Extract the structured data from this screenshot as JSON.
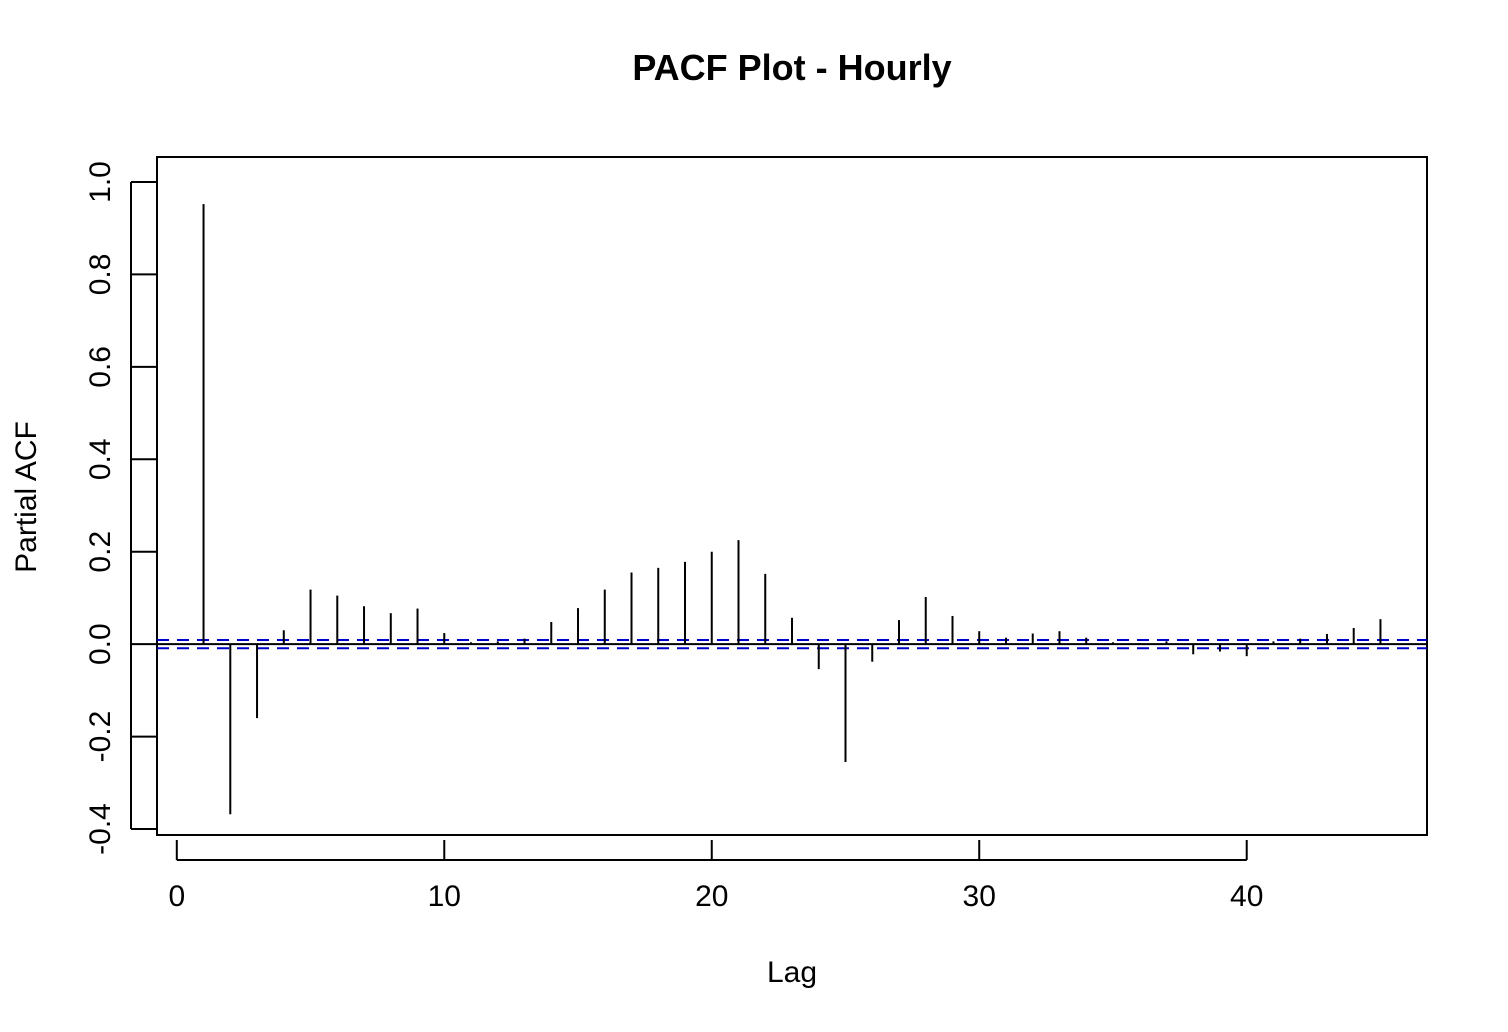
{
  "chart_data": {
    "type": "bar",
    "title": "PACF Plot - Hourly",
    "xlabel": "Lag",
    "ylabel": "Partial ACF",
    "xlim": [
      -0.74,
      46.74
    ],
    "ylim": [
      -0.4,
      1.0
    ],
    "x_ticks": [
      0,
      10,
      20,
      30,
      40
    ],
    "x_tick_labels": [
      "0",
      "10",
      "20",
      "30",
      "40"
    ],
    "y_ticks": [
      -0.4,
      -0.2,
      0.0,
      0.2,
      0.4,
      0.6,
      0.8,
      1.0
    ],
    "y_tick_labels": [
      "-0.4",
      "-0.2",
      "0.0",
      "0.2",
      "0.4",
      "0.6",
      "0.8",
      "1.0"
    ],
    "grid": false,
    "legend": "none",
    "confidence_bound": 0.009,
    "series": [
      {
        "x": [
          1,
          2,
          3,
          4,
          5,
          6,
          7,
          8,
          9,
          10,
          11,
          12,
          13,
          14,
          15,
          16,
          17,
          18,
          19,
          20,
          21,
          22,
          23,
          24,
          25,
          26,
          27,
          28,
          29,
          30,
          31,
          32,
          33,
          34,
          35,
          36,
          37,
          38,
          39,
          40,
          41,
          42,
          43,
          44,
          45
        ],
        "values": [
          0.952,
          -0.368,
          -0.16,
          0.03,
          0.118,
          0.105,
          0.082,
          0.067,
          0.077,
          0.024,
          0.004,
          0.006,
          0.012,
          0.048,
          0.078,
          0.118,
          0.155,
          0.165,
          0.178,
          0.2,
          0.225,
          0.152,
          0.057,
          -0.054,
          -0.255,
          -0.038,
          0.052,
          0.102,
          0.061,
          0.028,
          0.014,
          0.023,
          0.028,
          0.014,
          0.004,
          0.002,
          0.006,
          -0.022,
          -0.016,
          -0.026,
          0.006,
          0.012,
          0.022,
          0.035,
          0.054
        ]
      }
    ],
    "colors": {
      "spike": "#000000",
      "bound": "#0000cc",
      "axis": "#000000"
    }
  }
}
